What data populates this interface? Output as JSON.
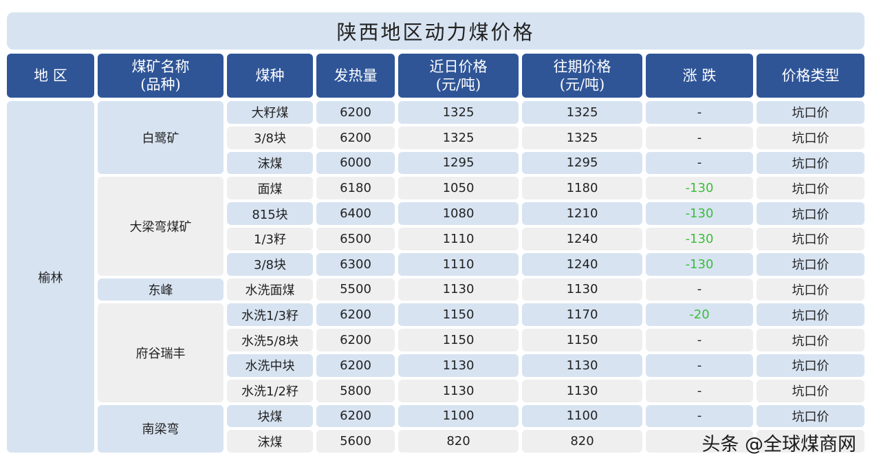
{
  "title": "陕西地区动力煤价格",
  "headers": [
    {
      "line1": "地 区",
      "line2": ""
    },
    {
      "line1": "煤矿名称",
      "line2": "(品种)"
    },
    {
      "line1": "煤种",
      "line2": ""
    },
    {
      "line1": "发热量",
      "line2": ""
    },
    {
      "line1": "近日价格",
      "line2": "(元/吨)"
    },
    {
      "line1": "往期价格",
      "line2": "(元/吨)"
    },
    {
      "line1": "涨 跌",
      "line2": ""
    },
    {
      "line1": "价格类型",
      "line2": ""
    }
  ],
  "region": "榆林",
  "mines": [
    {
      "name": "白鹭矿",
      "start": 0,
      "span": 3
    },
    {
      "name": "大梁弯煤矿",
      "start": 3,
      "span": 4
    },
    {
      "name": "东峰",
      "start": 7,
      "span": 1
    },
    {
      "name": "府谷瑞丰",
      "start": 8,
      "span": 4
    },
    {
      "name": "南梁弯",
      "start": 12,
      "span": 2
    }
  ],
  "rows": [
    {
      "coal": "大籽煤",
      "heat": "6200",
      "recent": "1325",
      "previous": "1325",
      "change": "-",
      "type": "坑口价"
    },
    {
      "coal": "3/8块",
      "heat": "6200",
      "recent": "1325",
      "previous": "1325",
      "change": "-",
      "type": "坑口价"
    },
    {
      "coal": "沫煤",
      "heat": "6000",
      "recent": "1295",
      "previous": "1295",
      "change": "-",
      "type": "坑口价"
    },
    {
      "coal": "面煤",
      "heat": "6180",
      "recent": "1050",
      "previous": "1180",
      "change": "-130",
      "type": "坑口价"
    },
    {
      "coal": "815块",
      "heat": "6400",
      "recent": "1080",
      "previous": "1210",
      "change": "-130",
      "type": "坑口价"
    },
    {
      "coal": "1/3籽",
      "heat": "6500",
      "recent": "1110",
      "previous": "1240",
      "change": "-130",
      "type": "坑口价"
    },
    {
      "coal": "3/8块",
      "heat": "6300",
      "recent": "1110",
      "previous": "1240",
      "change": "-130",
      "type": "坑口价"
    },
    {
      "coal": "水洗面煤",
      "heat": "5500",
      "recent": "1130",
      "previous": "1130",
      "change": "-",
      "type": "坑口价"
    },
    {
      "coal": "水洗1/3籽",
      "heat": "6200",
      "recent": "1150",
      "previous": "1170",
      "change": "-20",
      "type": "坑口价"
    },
    {
      "coal": "水洗5/8块",
      "heat": "6200",
      "recent": "1150",
      "previous": "1150",
      "change": "-",
      "type": "坑口价"
    },
    {
      "coal": "水洗中块",
      "heat": "6200",
      "recent": "1130",
      "previous": "1130",
      "change": "-",
      "type": "坑口价"
    },
    {
      "coal": "水洗1/2籽",
      "heat": "5800",
      "recent": "1130",
      "previous": "1130",
      "change": "-",
      "type": "坑口价"
    },
    {
      "coal": "块煤",
      "heat": "6200",
      "recent": "1100",
      "previous": "1100",
      "change": "-",
      "type": "坑口价"
    },
    {
      "coal": "沫煤",
      "heat": "5600",
      "recent": "820",
      "previous": "820",
      "change": "",
      "type": ""
    }
  ],
  "watermark": "头条 @全球煤商网",
  "colors": {
    "header": "#2f5597",
    "light_blue": "#d7e3f1",
    "light_gray": "#efefef",
    "decline": "#3cbc3c"
  }
}
